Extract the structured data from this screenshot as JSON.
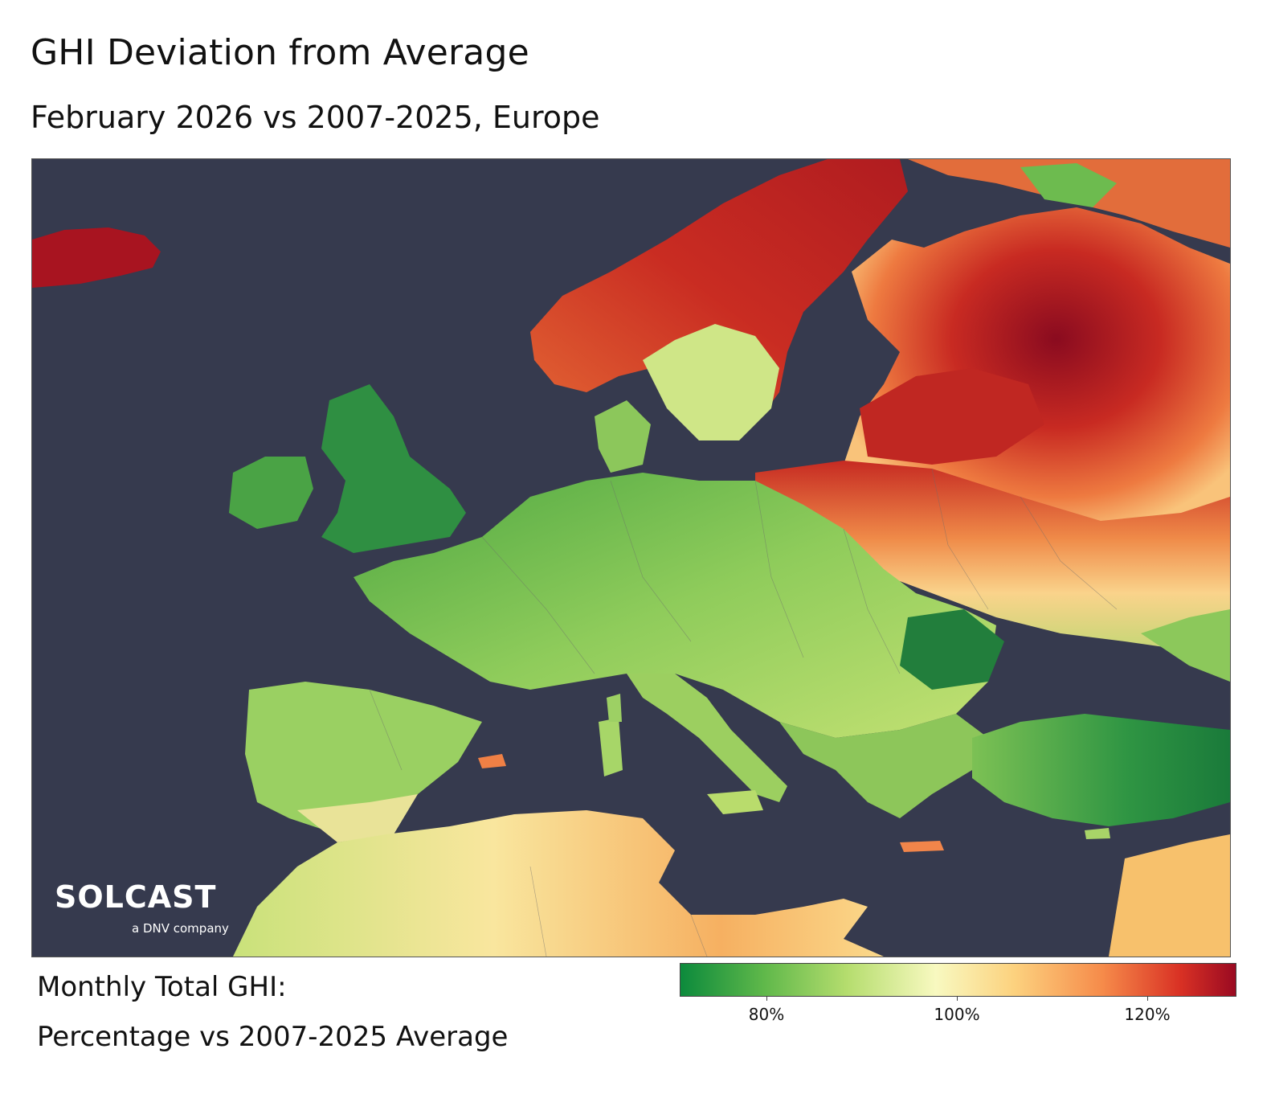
{
  "title": "GHI Deviation from Average",
  "subtitle": "February 2026 vs 2007-2025, Europe",
  "legend": {
    "line1": "Monthly Total GHI:",
    "line2": "Percentage vs 2007-2025 Average",
    "ticks": [
      "80%",
      "100%",
      "120%"
    ],
    "colors": [
      "#0c8a3c",
      "#5fb84a",
      "#b5dd6e",
      "#f8f9c0",
      "#fcd27f",
      "#f68b4a",
      "#d93124",
      "#9a0a22"
    ]
  },
  "logo": {
    "wordmark": "SOLCAST",
    "tagline": "a DNV company"
  },
  "colors": {
    "sea": "#363a4e",
    "low": "#0c8a3c",
    "average": "#f8f9c0",
    "high": "#9a0a22"
  }
}
